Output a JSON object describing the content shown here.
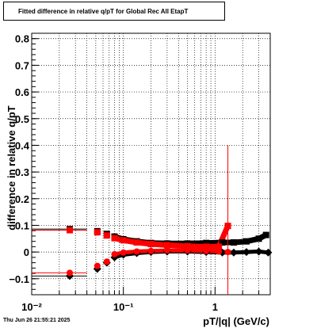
{
  "footer_timestamp": "Thu Jun 26 21:55:21 2025",
  "chart_data": {
    "type": "scatter",
    "title": "Fitted difference in relative q/pT for Global Rec All EtapT",
    "xlabel": "pT/|q| (GeV/c)",
    "ylabel": "difference in relative q/pT",
    "xscale": "log",
    "xlim": [
      0.01,
      4.0
    ],
    "ylim": [
      -0.16,
      0.82
    ],
    "grid": true,
    "x_tick_labels": [
      "10⁻²",
      "10⁻¹",
      "1"
    ],
    "y_tick_labels": [
      "−0.1",
      "0",
      "0.1",
      "0.2",
      "0.3",
      "0.4",
      "0.5",
      "0.6",
      "0.7",
      "0.8"
    ],
    "series": [
      {
        "marker": "square",
        "color": "#000000",
        "x": [
          0.026,
          0.052,
          0.066,
          0.08,
          0.1,
          0.14,
          0.2,
          0.3,
          0.5,
          0.8,
          1.2,
          1.6,
          2.2,
          3.0,
          3.6
        ],
        "y": [
          0.086,
          0.078,
          0.068,
          0.058,
          0.048,
          0.04,
          0.034,
          0.032,
          0.032,
          0.034,
          0.036,
          0.036,
          0.04,
          0.05,
          0.064
        ]
      },
      {
        "marker": "square",
        "color": "#ff0000",
        "x": [
          0.026,
          0.052,
          0.066,
          0.08,
          0.1,
          0.14,
          0.2,
          0.3,
          0.5,
          0.8,
          1.1,
          1.38
        ],
        "y": [
          0.082,
          0.074,
          0.062,
          0.052,
          0.044,
          0.036,
          0.03,
          0.026,
          0.022,
          0.02,
          0.02,
          0.098
        ]
      },
      {
        "marker": "diamond",
        "color": "#000000",
        "x": [
          0.026,
          0.052,
          0.066,
          0.08,
          0.1,
          0.14,
          0.2,
          0.3,
          0.5,
          0.8,
          1.2,
          1.6,
          2.2,
          3.0,
          3.8
        ],
        "y": [
          -0.09,
          -0.063,
          -0.04,
          -0.02,
          -0.01,
          -0.004,
          0.0,
          0.002,
          0.002,
          0.0,
          -0.002,
          -0.002,
          0.0,
          0.002,
          -0.002
        ]
      },
      {
        "marker": "circle",
        "color": "#ff0000",
        "x": [
          0.026,
          0.052,
          0.066,
          0.08,
          0.1,
          0.14,
          0.2,
          0.3,
          0.5,
          0.8,
          1.1,
          1.38
        ],
        "y": [
          -0.078,
          -0.052,
          -0.036,
          -0.008,
          -0.002,
          0.002,
          0.004,
          0.006,
          0.006,
          0.004,
          0.002,
          0.0
        ]
      }
    ]
  }
}
